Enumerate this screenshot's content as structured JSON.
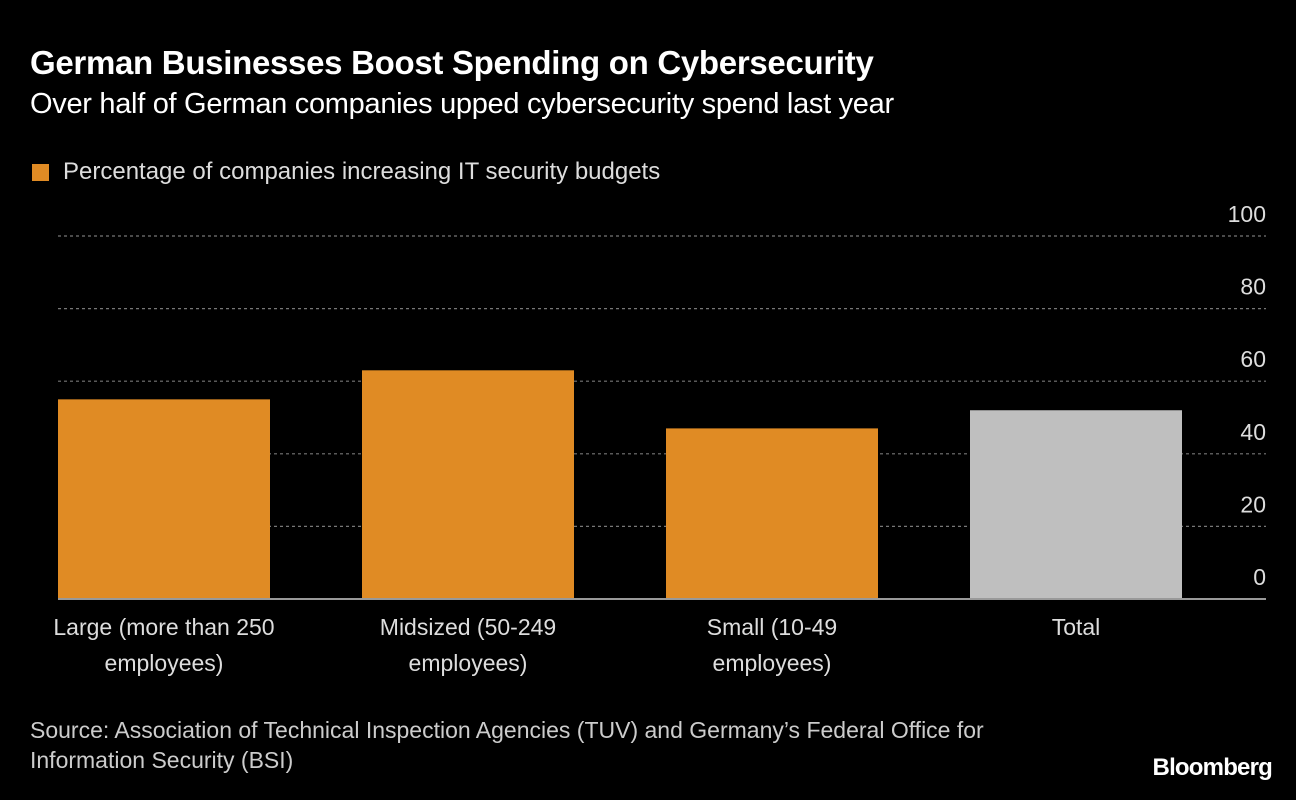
{
  "chart_data": {
    "type": "bar",
    "title": "German Businesses Boost Spending on Cybersecurity",
    "subtitle": "Over half of German companies upped cybersecurity spend last year",
    "legend": [
      {
        "label": "Percentage of companies increasing IT security budgets",
        "color": "#e08b24"
      }
    ],
    "legend_position": "top-left",
    "categories": [
      [
        "Large (more than 250",
        "employees)"
      ],
      [
        "Midsized (50-249",
        "employees)"
      ],
      [
        "Small (10-49",
        "employees)"
      ],
      [
        "Total"
      ]
    ],
    "values": [
      55,
      63,
      47,
      52
    ],
    "colors": [
      "#e08b24",
      "#e08b24",
      "#e08b24",
      "#bfbfbf"
    ],
    "ylim": [
      0,
      100
    ],
    "yticks": [
      0,
      20,
      40,
      60,
      80,
      100
    ],
    "yaxis_side": "right",
    "grid": true,
    "xlabel": "",
    "ylabel": ""
  },
  "source": "Source: Association of Technical Inspection Agencies (TUV) and Germany’s Federal Office for Information Security (BSI)",
  "brand": "Bloomberg"
}
